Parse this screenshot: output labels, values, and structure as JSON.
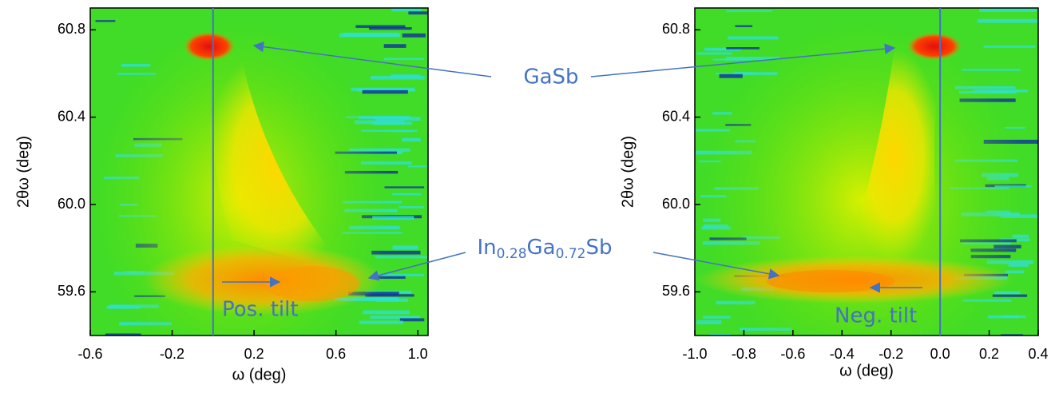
{
  "chart_data": [
    {
      "type": "heatmap",
      "xlabel": "ω (deg)",
      "ylabel": "2θω (deg)",
      "xlim": [
        -0.6,
        1.05
      ],
      "ylim": [
        59.4,
        60.9
      ],
      "xticks": [
        -0.6,
        -0.2,
        0.2,
        0.6,
        {
          "value": 1,
          "label": "1.0"
        }
      ],
      "yticks": [
        59.6,
        {
          "value": 60,
          "label": "60.0"
        },
        60.4,
        60.8
      ],
      "vline": 0,
      "annotation": "Pos. tilt"
    },
    {
      "type": "heatmap",
      "xlabel": "ω (deg)",
      "ylabel": "2θω (deg)",
      "xlim": [
        -1.0,
        0.4
      ],
      "ylim": [
        59.4,
        60.9
      ],
      "xticks": [
        {
          "value": -1,
          "label": "-1.0"
        },
        -0.8,
        -0.6,
        -0.4,
        -0.2,
        {
          "value": 0,
          "label": "0.0"
        },
        0.2,
        0.4
      ],
      "yticks": [
        59.6,
        {
          "value": 60,
          "label": "60.0"
        },
        60.4,
        60.8
      ],
      "vline": 0,
      "annotation": "Neg. tilt"
    }
  ],
  "labels": {
    "substrate": "GaSb",
    "layer": [
      "In",
      "0.28",
      "Ga",
      "0.72",
      "Sb"
    ]
  }
}
